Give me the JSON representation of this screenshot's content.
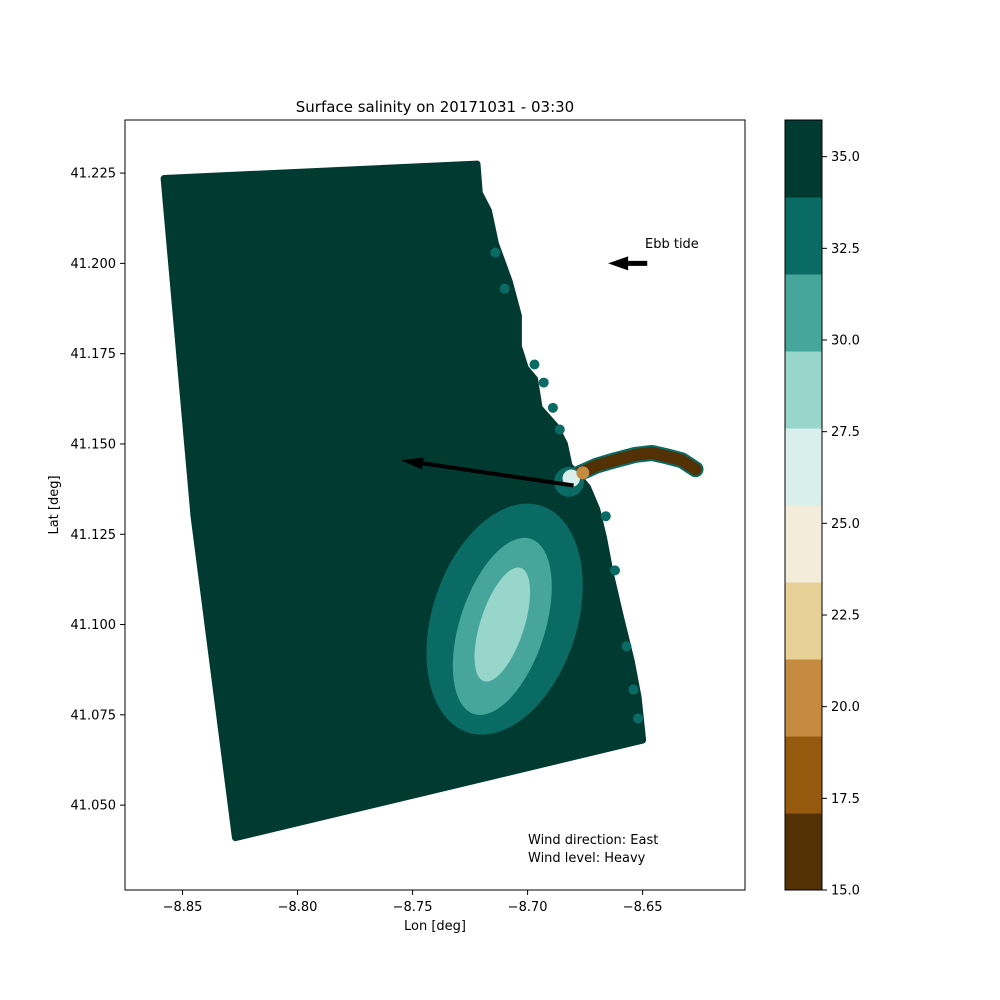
{
  "chart_data": {
    "type": "scatter",
    "title": "Surface salinity on 20171031 - 03:30",
    "xlabel": "Lon [deg]",
    "ylabel": "Lat [deg]",
    "xlim": [
      -8.875,
      -8.6055
    ],
    "ylim": [
      41.0265,
      41.2397
    ],
    "x_ticks": [
      -8.85,
      -8.8,
      -8.75,
      -8.7,
      -8.65
    ],
    "x_tick_labels": [
      "−8.85",
      "−8.80",
      "−8.75",
      "−8.70",
      "−8.65"
    ],
    "y_ticks": [
      41.05,
      41.075,
      41.1,
      41.125,
      41.15,
      41.175,
      41.2,
      41.225
    ],
    "y_tick_labels": [
      "41.050",
      "41.075",
      "41.100",
      "41.125",
      "41.150",
      "41.175",
      "41.200",
      "41.225"
    ],
    "grid": false,
    "domain_outline": [
      [
        -8.858,
        41.2235
      ],
      [
        -8.722,
        41.2275
      ],
      [
        -8.721,
        41.2195
      ],
      [
        -8.717,
        41.2145
      ],
      [
        -8.714,
        41.2055
      ],
      [
        -8.708,
        41.195
      ],
      [
        -8.704,
        41.1855
      ],
      [
        -8.704,
        41.177
      ],
      [
        -8.701,
        41.171
      ],
      [
        -8.697,
        41.168
      ],
      [
        -8.695,
        41.16
      ],
      [
        -8.688,
        41.155
      ],
      [
        -8.684,
        41.15
      ],
      [
        -8.682,
        41.144
      ],
      [
        -8.674,
        41.138
      ],
      [
        -8.67,
        41.132
      ],
      [
        -8.667,
        41.124
      ],
      [
        -8.664,
        41.114
      ],
      [
        -8.66,
        41.103
      ],
      [
        -8.655,
        41.09
      ],
      [
        -8.652,
        41.08
      ],
      [
        -8.65,
        41.068
      ],
      [
        -8.827,
        41.041
      ],
      [
        -8.845,
        41.13
      ]
    ],
    "coast_bumps": [
      [
        -8.714,
        41.203
      ],
      [
        -8.71,
        41.193
      ],
      [
        -8.697,
        41.172
      ],
      [
        -8.693,
        41.167
      ],
      [
        -8.689,
        41.16
      ],
      [
        -8.686,
        41.154
      ],
      [
        -8.666,
        41.13
      ],
      [
        -8.662,
        41.115
      ],
      [
        -8.657,
        41.094
      ],
      [
        -8.654,
        41.082
      ],
      [
        -8.652,
        41.074
      ]
    ],
    "plume": [
      {
        "salinity": 33.5,
        "center": [
          -8.71,
          41.1015
        ],
        "rx": 0.0315,
        "ry": 0.033
      },
      {
        "salinity": 31.0,
        "center": [
          -8.711,
          41.0995
        ],
        "rx": 0.0185,
        "ry": 0.0255
      },
      {
        "salinity": 28.5,
        "center": [
          -8.711,
          41.1
        ],
        "rx": 0.0095,
        "ry": 0.0165
      }
    ],
    "estuary_centerline": [
      [
        -8.684,
        41.14
      ],
      [
        -8.677,
        41.142
      ],
      [
        -8.67,
        41.144
      ],
      [
        -8.662,
        41.1455
      ],
      [
        -8.653,
        41.147
      ],
      [
        -8.646,
        41.1475
      ],
      [
        -8.639,
        41.1465
      ],
      [
        -8.633,
        41.1455
      ],
      [
        -8.627,
        41.143
      ]
    ],
    "estuary_mouth": [
      {
        "salinity": 33.5,
        "center": [
          -8.682,
          41.1395
        ],
        "r": 0.0065
      },
      {
        "salinity": 26.0,
        "center": [
          -8.681,
          41.1405
        ],
        "r": 0.0038
      },
      {
        "salinity": 20.0,
        "center": [
          -8.676,
          41.142
        ],
        "r": 0.0028
      }
    ],
    "wind_arrow": {
      "from": [
        -8.68,
        41.1385
      ],
      "to": [
        -8.755,
        41.1455
      ]
    },
    "tide_arrow": {
      "from": [
        -8.648,
        41.2
      ],
      "to": [
        -8.665,
        41.2
      ]
    },
    "annotations": {
      "tide": "Ebb tide",
      "wind_direction": "Wind direction: East",
      "wind_level": "Wind level: Heavy"
    },
    "colorbar": {
      "min": 15.0,
      "max": 36.0,
      "levels": [
        15.0,
        17.1,
        19.2,
        21.3,
        23.4,
        25.5,
        27.6,
        29.7,
        31.8,
        33.9,
        36.0
      ],
      "colors": [
        "#543005",
        "#965a0f",
        "#c58b41",
        "#e8d196",
        "#f4ecda",
        "#d8efec",
        "#98d5ca",
        "#47a69b",
        "#0a6b65",
        "#013a31"
      ],
      "ticks": [
        15.0,
        17.5,
        20.0,
        22.5,
        25.0,
        27.5,
        30.0,
        32.5,
        35.0
      ],
      "tick_labels": [
        "15.0",
        "17.5",
        "20.0",
        "22.5",
        "25.0",
        "27.5",
        "30.0",
        "32.5",
        "35.0"
      ]
    }
  }
}
